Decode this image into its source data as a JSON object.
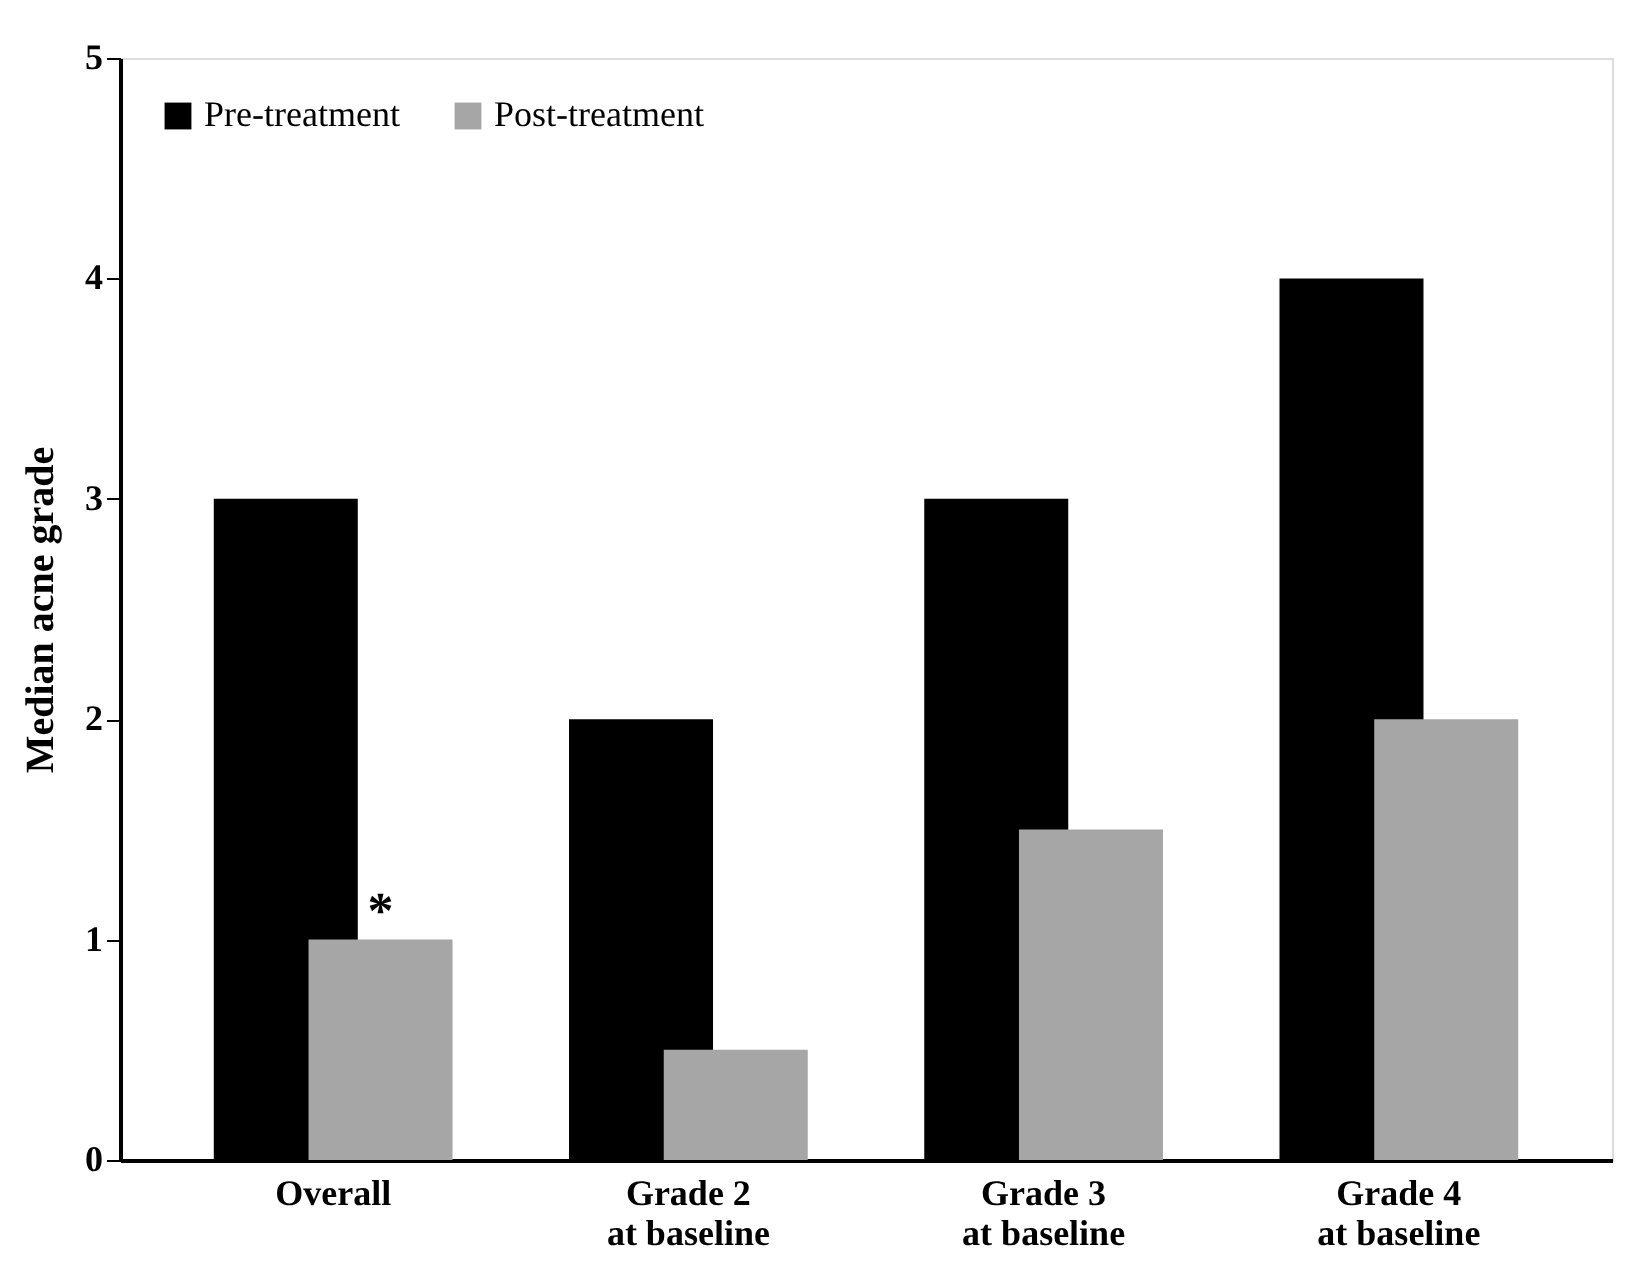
{
  "chart_data": {
    "type": "bar",
    "ylabel": "Median acne grade",
    "categories": [
      "Overall",
      "Grade 2\nat baseline",
      "Grade 3\nat baseline",
      "Grade 4\nat baseline"
    ],
    "series": [
      {
        "name": "Pre-treatment",
        "color": "#000000",
        "values": [
          3,
          2,
          3,
          4
        ]
      },
      {
        "name": "Post-treatment",
        "color": "#a6a6a6",
        "values": [
          1,
          0.5,
          1.5,
          2
        ]
      }
    ],
    "ylim": [
      0,
      5
    ],
    "yticks": [
      0,
      1,
      2,
      3,
      4,
      5
    ],
    "grid": false,
    "legend": "top left",
    "annotations": [
      {
        "text": "*",
        "x": "Overall",
        "y": 1
      }
    ]
  }
}
